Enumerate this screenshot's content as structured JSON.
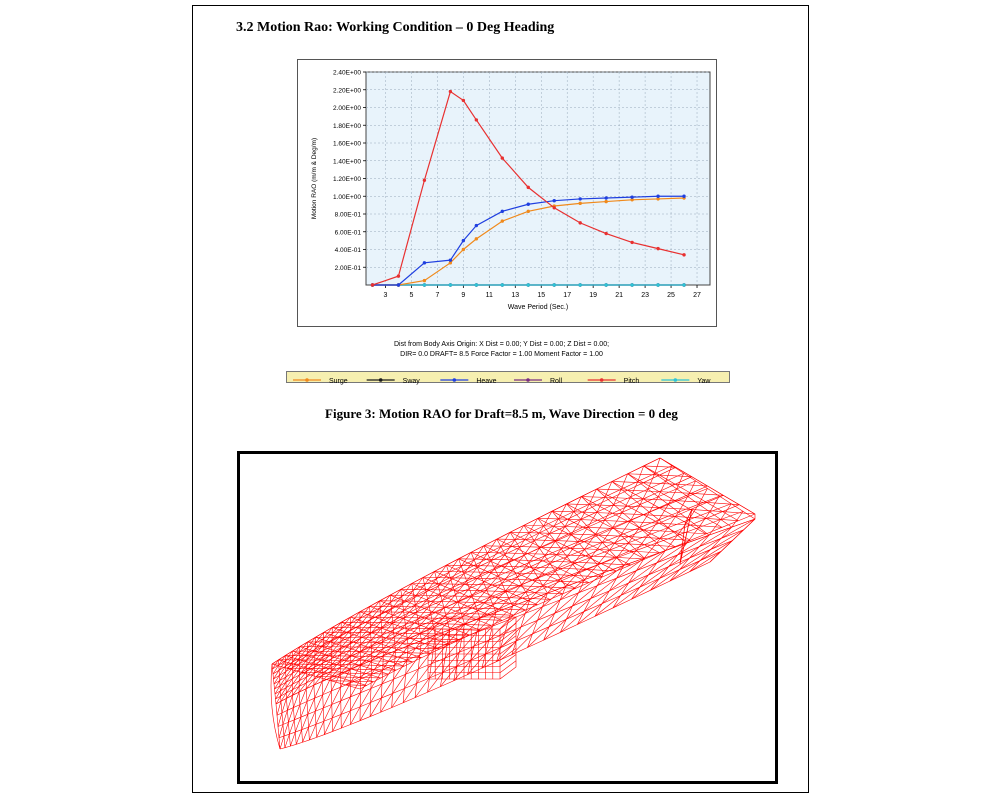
{
  "document": {
    "section_title": "3.2 Motion Rao: Working Condition – 0 Deg Heading",
    "info_line1": "Dist from Body Axis Origin: X Dist = 0.00; Y Dist = 0.00; Z Dist = 0.00;",
    "info_line2": "DIR=  0.0    DRAFT=  8.5    Force Factor =  1.00    Moment Factor =  1.00",
    "caption": "Figure 3: Motion RAO for Draft=8.5 m, Wave Direction = 0 deg"
  },
  "chart_data": {
    "type": "line",
    "xlabel": "Wave Period (Sec.)",
    "ylabel": "Motion RAO  (m/m & Deg/m)",
    "xlim": [
      1.5,
      28
    ],
    "ylim": [
      0,
      2.4
    ],
    "x_ticks": [
      3,
      5,
      7,
      9,
      11,
      13,
      15,
      17,
      19,
      21,
      23,
      25,
      27
    ],
    "y_ticks": [
      {
        "value": 0.2,
        "label": "2.00E-01"
      },
      {
        "value": 0.4,
        "label": "4.00E-01"
      },
      {
        "value": 0.6,
        "label": "6.00E-01"
      },
      {
        "value": 0.8,
        "label": "8.00E-01"
      },
      {
        "value": 1.0,
        "label": "1.00E+00"
      },
      {
        "value": 1.2,
        "label": "1.20E+00"
      },
      {
        "value": 1.4,
        "label": "1.40E+00"
      },
      {
        "value": 1.6,
        "label": "1.60E+00"
      },
      {
        "value": 1.8,
        "label": "1.80E+00"
      },
      {
        "value": 2.0,
        "label": "2.00E+00"
      },
      {
        "value": 2.2,
        "label": "2.20E+00"
      },
      {
        "value": 2.4,
        "label": "2.40E+00"
      }
    ],
    "grid": true,
    "plot_background": "#e8f3fb",
    "legend_position": "bottom",
    "series": [
      {
        "name": "Surge",
        "color": "#f08a1c",
        "x": [
          2,
          4,
          6,
          8,
          9,
          10,
          12,
          14,
          16,
          18,
          20,
          22,
          24,
          26
        ],
        "y": [
          0.0,
          0.0,
          0.05,
          0.25,
          0.4,
          0.52,
          0.72,
          0.83,
          0.89,
          0.92,
          0.94,
          0.96,
          0.97,
          0.98
        ]
      },
      {
        "name": "Sway",
        "color": "#1a1a1a",
        "x": [
          2,
          4,
          6,
          8,
          10,
          12,
          14,
          16,
          18,
          20,
          22,
          24,
          26
        ],
        "y": [
          0.0,
          0.0,
          0.0,
          0.0,
          0.0,
          0.0,
          0.0,
          0.0,
          0.0,
          0.0,
          0.0,
          0.0,
          0.0
        ]
      },
      {
        "name": "Heave",
        "color": "#1f3fe0",
        "x": [
          2,
          4,
          6,
          8,
          9,
          10,
          12,
          14,
          16,
          18,
          20,
          22,
          24,
          26
        ],
        "y": [
          0.0,
          0.0,
          0.25,
          0.28,
          0.5,
          0.67,
          0.83,
          0.91,
          0.95,
          0.97,
          0.98,
          0.99,
          1.0,
          1.0
        ]
      },
      {
        "name": "Roll",
        "color": "#7a2d82",
        "x": [
          2,
          4,
          6,
          8,
          10,
          12,
          14,
          16,
          18,
          20,
          22,
          24,
          26
        ],
        "y": [
          0.0,
          0.0,
          0.0,
          0.0,
          0.0,
          0.0,
          0.0,
          0.0,
          0.0,
          0.0,
          0.0,
          0.0,
          0.0
        ]
      },
      {
        "name": "Pitch",
        "color": "#e83030",
        "x": [
          2,
          4,
          6,
          8,
          9,
          10,
          12,
          14,
          16,
          18,
          20,
          22,
          24,
          26
        ],
        "y": [
          0.0,
          0.1,
          1.18,
          2.18,
          2.08,
          1.86,
          1.43,
          1.1,
          0.87,
          0.7,
          0.58,
          0.48,
          0.41,
          0.34
        ]
      },
      {
        "name": "Yaw",
        "color": "#2ec4d6",
        "x": [
          2,
          4,
          6,
          8,
          10,
          12,
          14,
          16,
          18,
          20,
          22,
          24,
          26
        ],
        "y": [
          0.0,
          0.0,
          0.0,
          0.0,
          0.0,
          0.0,
          0.0,
          0.0,
          0.0,
          0.0,
          0.0,
          0.0,
          0.0
        ]
      }
    ]
  },
  "mesh_figure": {
    "description_icon": "hull-wireframe-icon",
    "line_color": "#ff0000"
  }
}
